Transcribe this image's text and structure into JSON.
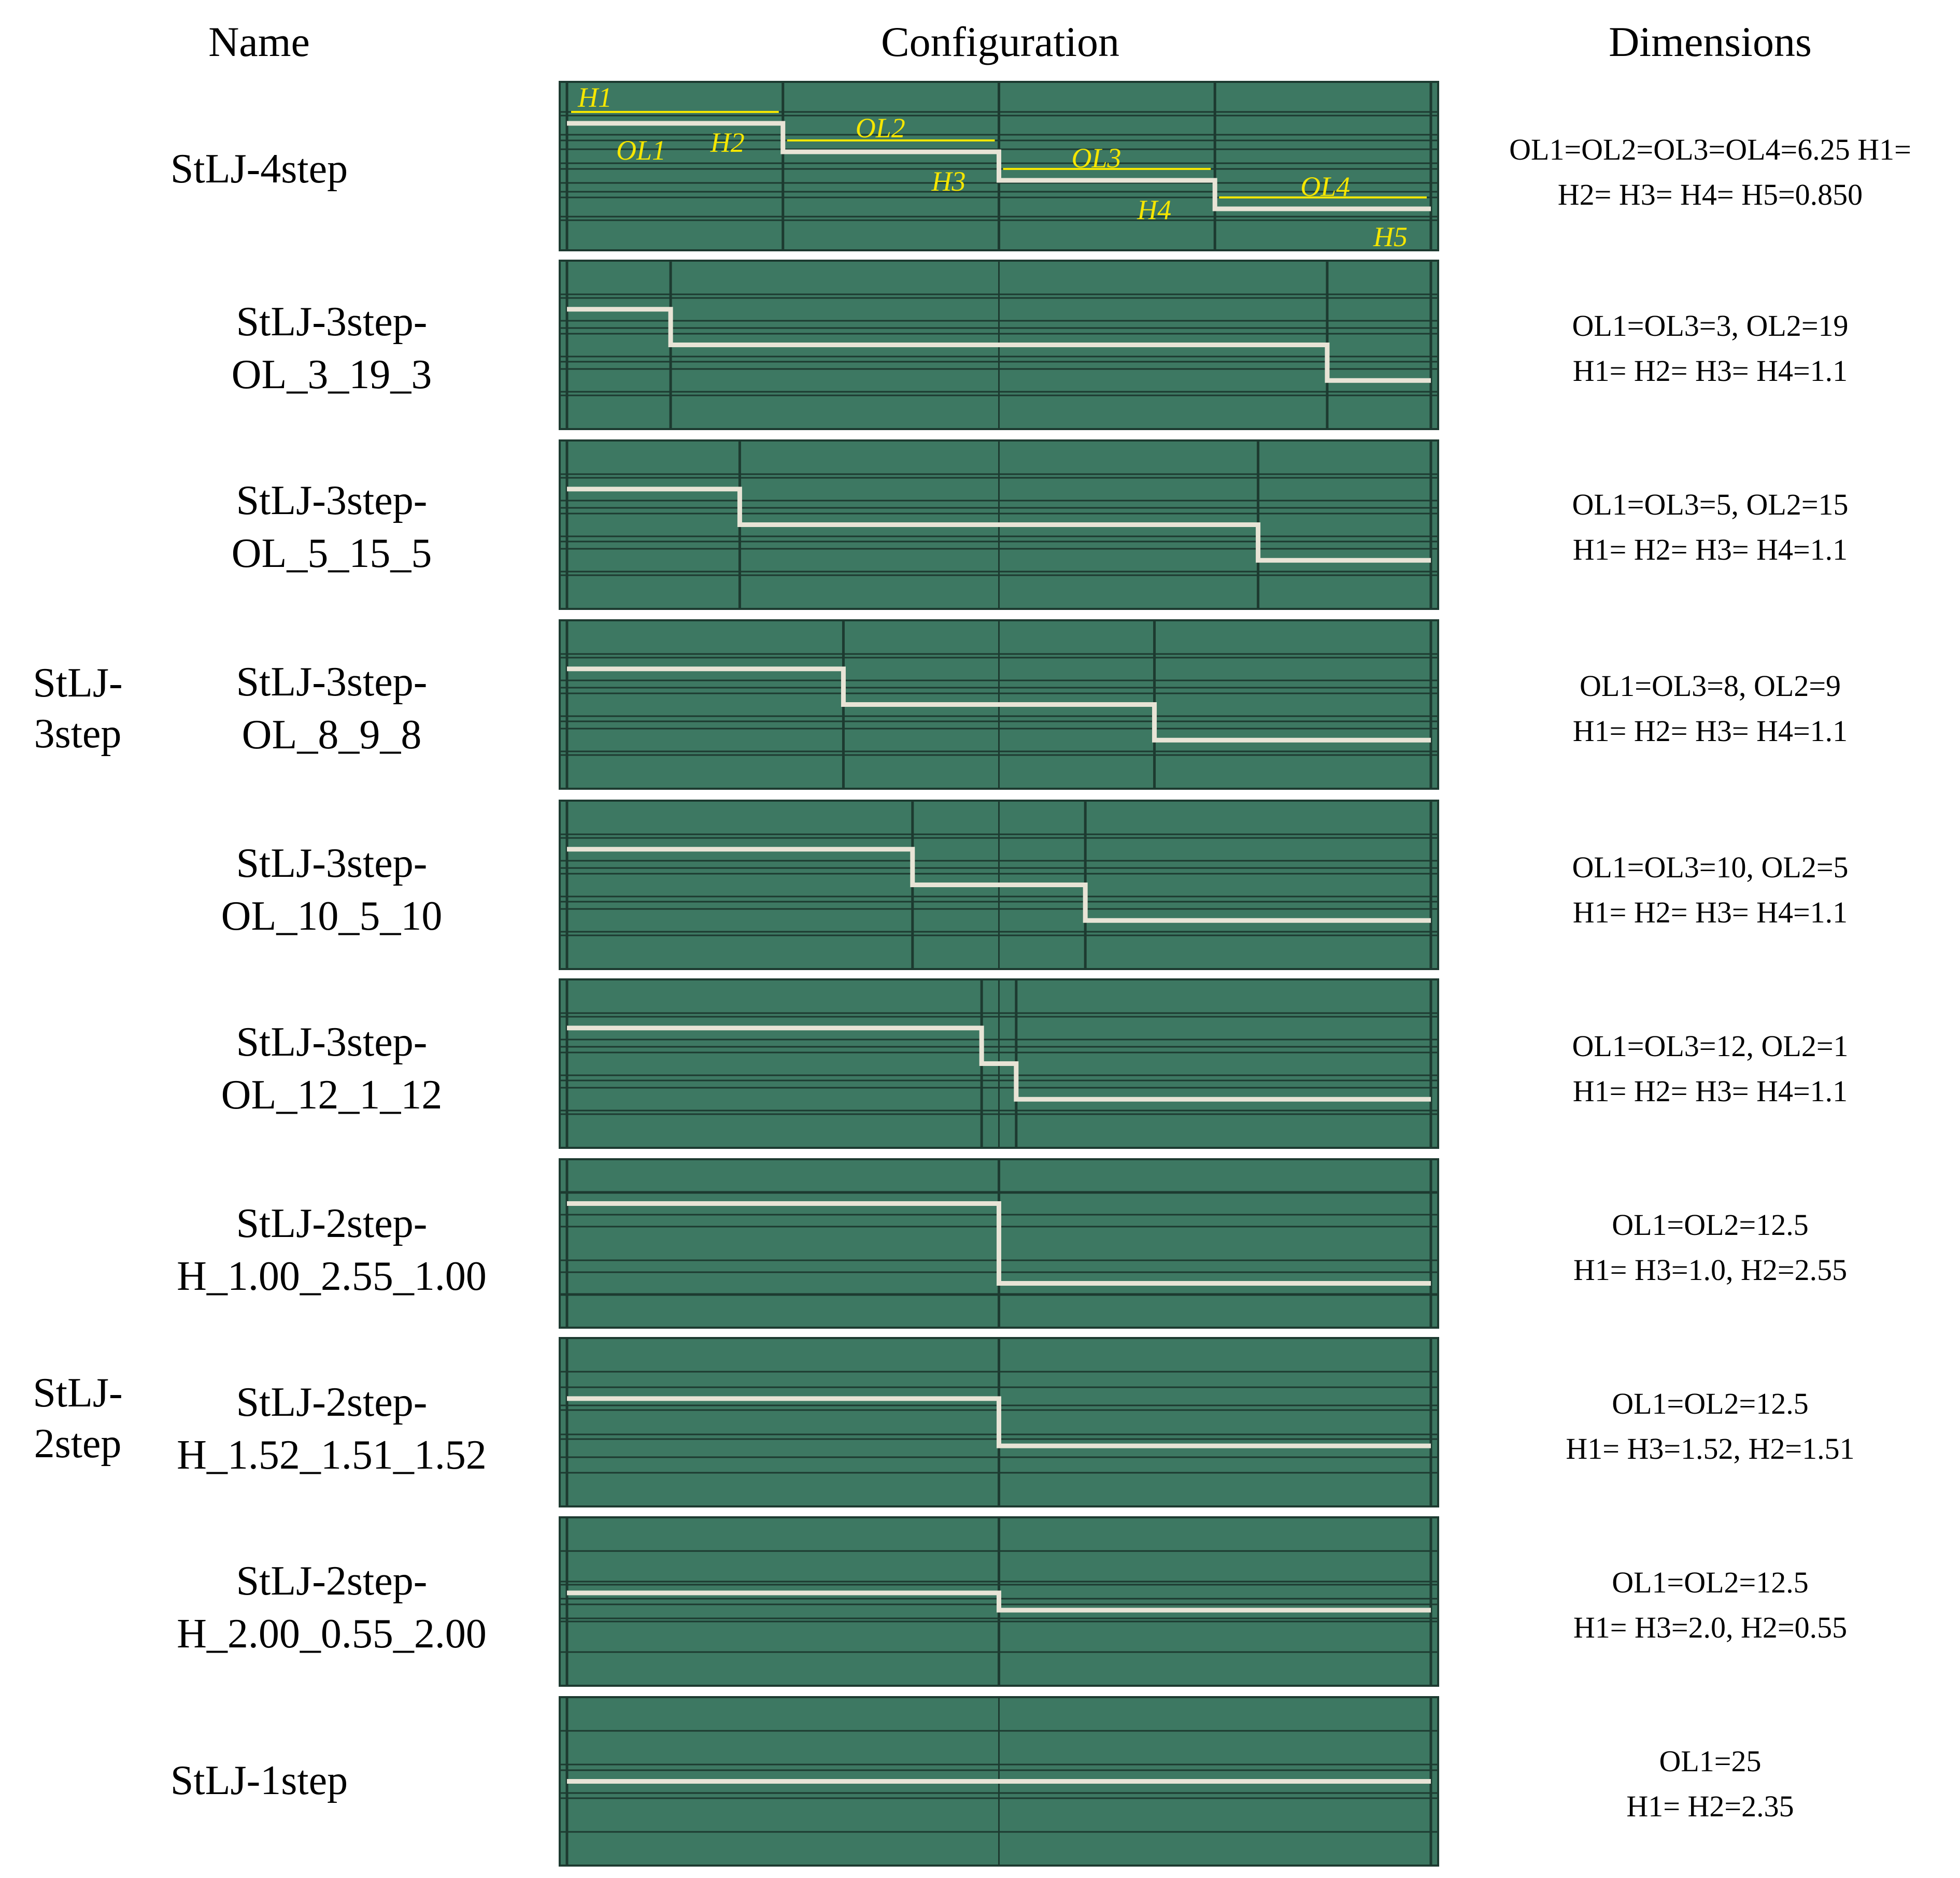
{
  "headers": {
    "name": "Name",
    "configuration": "Configuration",
    "dimensions": "Dimensions"
  },
  "groups": [
    {
      "label_line1": "StLJ-",
      "label_line2": "3step"
    },
    {
      "label_line1": "StLJ-",
      "label_line2": "2step"
    }
  ],
  "rows": [
    {
      "name_line1": "StLJ-4step",
      "name_line2": "",
      "dim_line1": "OL1=OL2=OL3=OL4=6.25 H1=",
      "dim_line2": "H2= H3= H4= H5=0.850",
      "overlaps": [
        6.25,
        6.25,
        6.25,
        6.25
      ],
      "annotations": [
        "H1",
        "OL1",
        "H2",
        "OL2",
        "H3",
        "OL3",
        "H4",
        "OL4",
        "H5"
      ]
    },
    {
      "name_line1": "StLJ-3step-",
      "name_line2": "OL_3_19_3",
      "dim_line1": "OL1=OL3=3, OL2=19",
      "dim_line2": "H1= H2= H3= H4=1.1",
      "overlaps": [
        3,
        19,
        3
      ]
    },
    {
      "name_line1": "StLJ-3step-",
      "name_line2": "OL_5_15_5",
      "dim_line1": "OL1=OL3=5, OL2=15",
      "dim_line2": "H1= H2= H3= H4=1.1",
      "overlaps": [
        5,
        15,
        5
      ]
    },
    {
      "name_line1": "StLJ-3step-",
      "name_line2": "OL_8_9_8",
      "dim_line1": "OL1=OL3=8, OL2=9",
      "dim_line2": "H1= H2= H3= H4=1.1",
      "overlaps": [
        8,
        9,
        8
      ]
    },
    {
      "name_line1": "StLJ-3step-",
      "name_line2": "OL_10_5_10",
      "dim_line1": "OL1=OL3=10, OL2=5",
      "dim_line2": "H1= H2= H3= H4=1.1",
      "overlaps": [
        10,
        5,
        10
      ]
    },
    {
      "name_line1": "StLJ-3step-",
      "name_line2": "OL_12_1_12",
      "dim_line1": "OL1=OL3=12, OL2=1",
      "dim_line2": "H1= H2= H3= H4=1.1",
      "overlaps": [
        12,
        1,
        12
      ]
    },
    {
      "name_line1": "StLJ-2step-",
      "name_line2": "H_1.00_2.55_1.00",
      "dim_line1": "OL1=OL2=12.5",
      "dim_line2": "H1= H3=1.0, H2=2.55",
      "overlaps": [
        12.5,
        12.5
      ],
      "heights": [
        1.0,
        2.55,
        1.0
      ]
    },
    {
      "name_line1": "StLJ-2step-",
      "name_line2": "H_1.52_1.51_1.52",
      "dim_line1": "OL1=OL2=12.5",
      "dim_line2": "H1= H3=1.52, H2=1.51",
      "overlaps": [
        12.5,
        12.5
      ],
      "heights": [
        1.52,
        1.51,
        1.52
      ]
    },
    {
      "name_line1": "StLJ-2step-",
      "name_line2": "H_2.00_0.55_2.00",
      "dim_line1": "OL1=OL2=12.5",
      "dim_line2": "H1= H3=2.0, H2=0.55",
      "overlaps": [
        12.5,
        12.5
      ],
      "heights": [
        2.0,
        0.55,
        2.0
      ]
    },
    {
      "name_line1": "StLJ-1step",
      "name_line2": "",
      "dim_line1": "OL1=25",
      "dim_line2": "H1= H2=2.35",
      "overlaps": [
        25
      ]
    }
  ],
  "colors": {
    "panel": "#3d7862",
    "grid": "#1d3a30",
    "interface": "#e8e4d6",
    "annotation": "#f5e600"
  }
}
